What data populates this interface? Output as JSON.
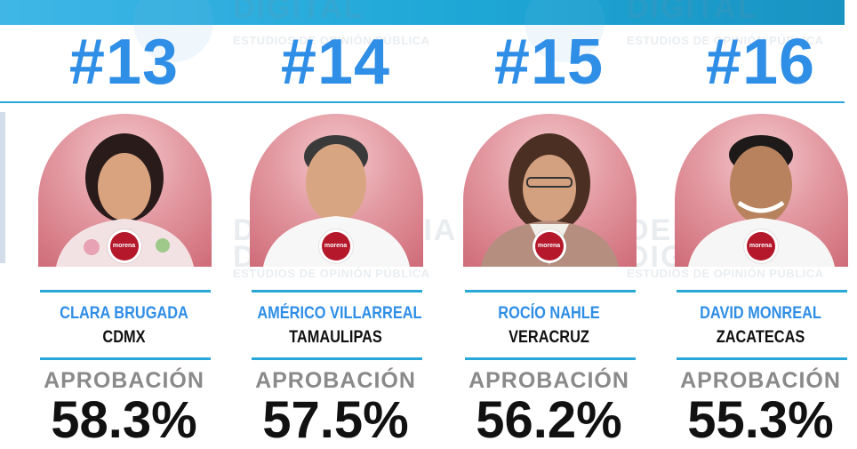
{
  "watermark": {
    "word_top": "DIGITAL",
    "subtitle": "ESTUDIOS DE OPINIÓN PÚBLICA",
    "word_mid": "DEMOSCOPIA",
    "word_mid2": "DIGITAL"
  },
  "colors": {
    "accent_blue": "#2f8ee6",
    "rule_blue": "#2aa7d9",
    "label_gray": "#8a8a8a",
    "party_red": "#b4182a"
  },
  "cards": [
    {
      "rank": "#13",
      "name": "CLARA BRUGADA",
      "state": "CDMX",
      "label": "APROBACIÓN",
      "value": "58.3%",
      "party": "morena"
    },
    {
      "rank": "#14",
      "name": "AMÉRICO VILLARREAL",
      "state": "TAMAULIPAS",
      "label": "APROBACIÓN",
      "value": "57.5%",
      "party": "morena"
    },
    {
      "rank": "#15",
      "name": "ROCÍO NAHLE",
      "state": "VERACRUZ",
      "label": "APROBACIÓN",
      "value": "56.2%",
      "party": "morena"
    },
    {
      "rank": "#16",
      "name": "DAVID MONREAL",
      "state": "ZACATECAS",
      "label": "APROBACIÓN",
      "value": "55.3%",
      "party": "morena"
    }
  ]
}
